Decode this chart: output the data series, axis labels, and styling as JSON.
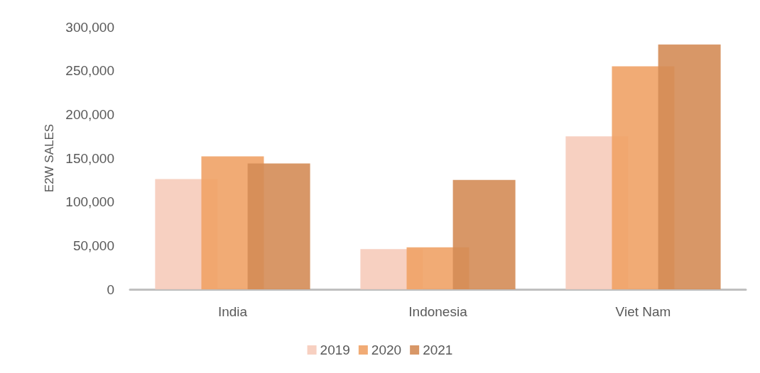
{
  "chart_data": {
    "type": "bar",
    "ylabel": "E2W SALES",
    "categories": [
      "India",
      "Indonesia",
      "Viet Nam"
    ],
    "series": [
      {
        "name": "2019",
        "color": "#f6cbba",
        "values": [
          126000,
          46000,
          175000
        ]
      },
      {
        "name": "2020",
        "color": "#f0a266",
        "values": [
          152000,
          48000,
          255000
        ]
      },
      {
        "name": "2021",
        "color": "#d48c56",
        "values": [
          144000,
          125000,
          280000
        ]
      }
    ],
    "ylim": [
      0,
      300000
    ],
    "yticks": [
      0,
      {
        "value": 50000,
        "label": "50,000"
      },
      {
        "value": 100000,
        "label": "100,000"
      },
      {
        "value": 150000,
        "label": "150,000"
      },
      {
        "value": 200000,
        "label": "200,000"
      },
      {
        "value": 250000,
        "label": "250,000"
      },
      {
        "value": 300000,
        "label": "300,000"
      }
    ],
    "grid": false,
    "legend": "bottom"
  }
}
